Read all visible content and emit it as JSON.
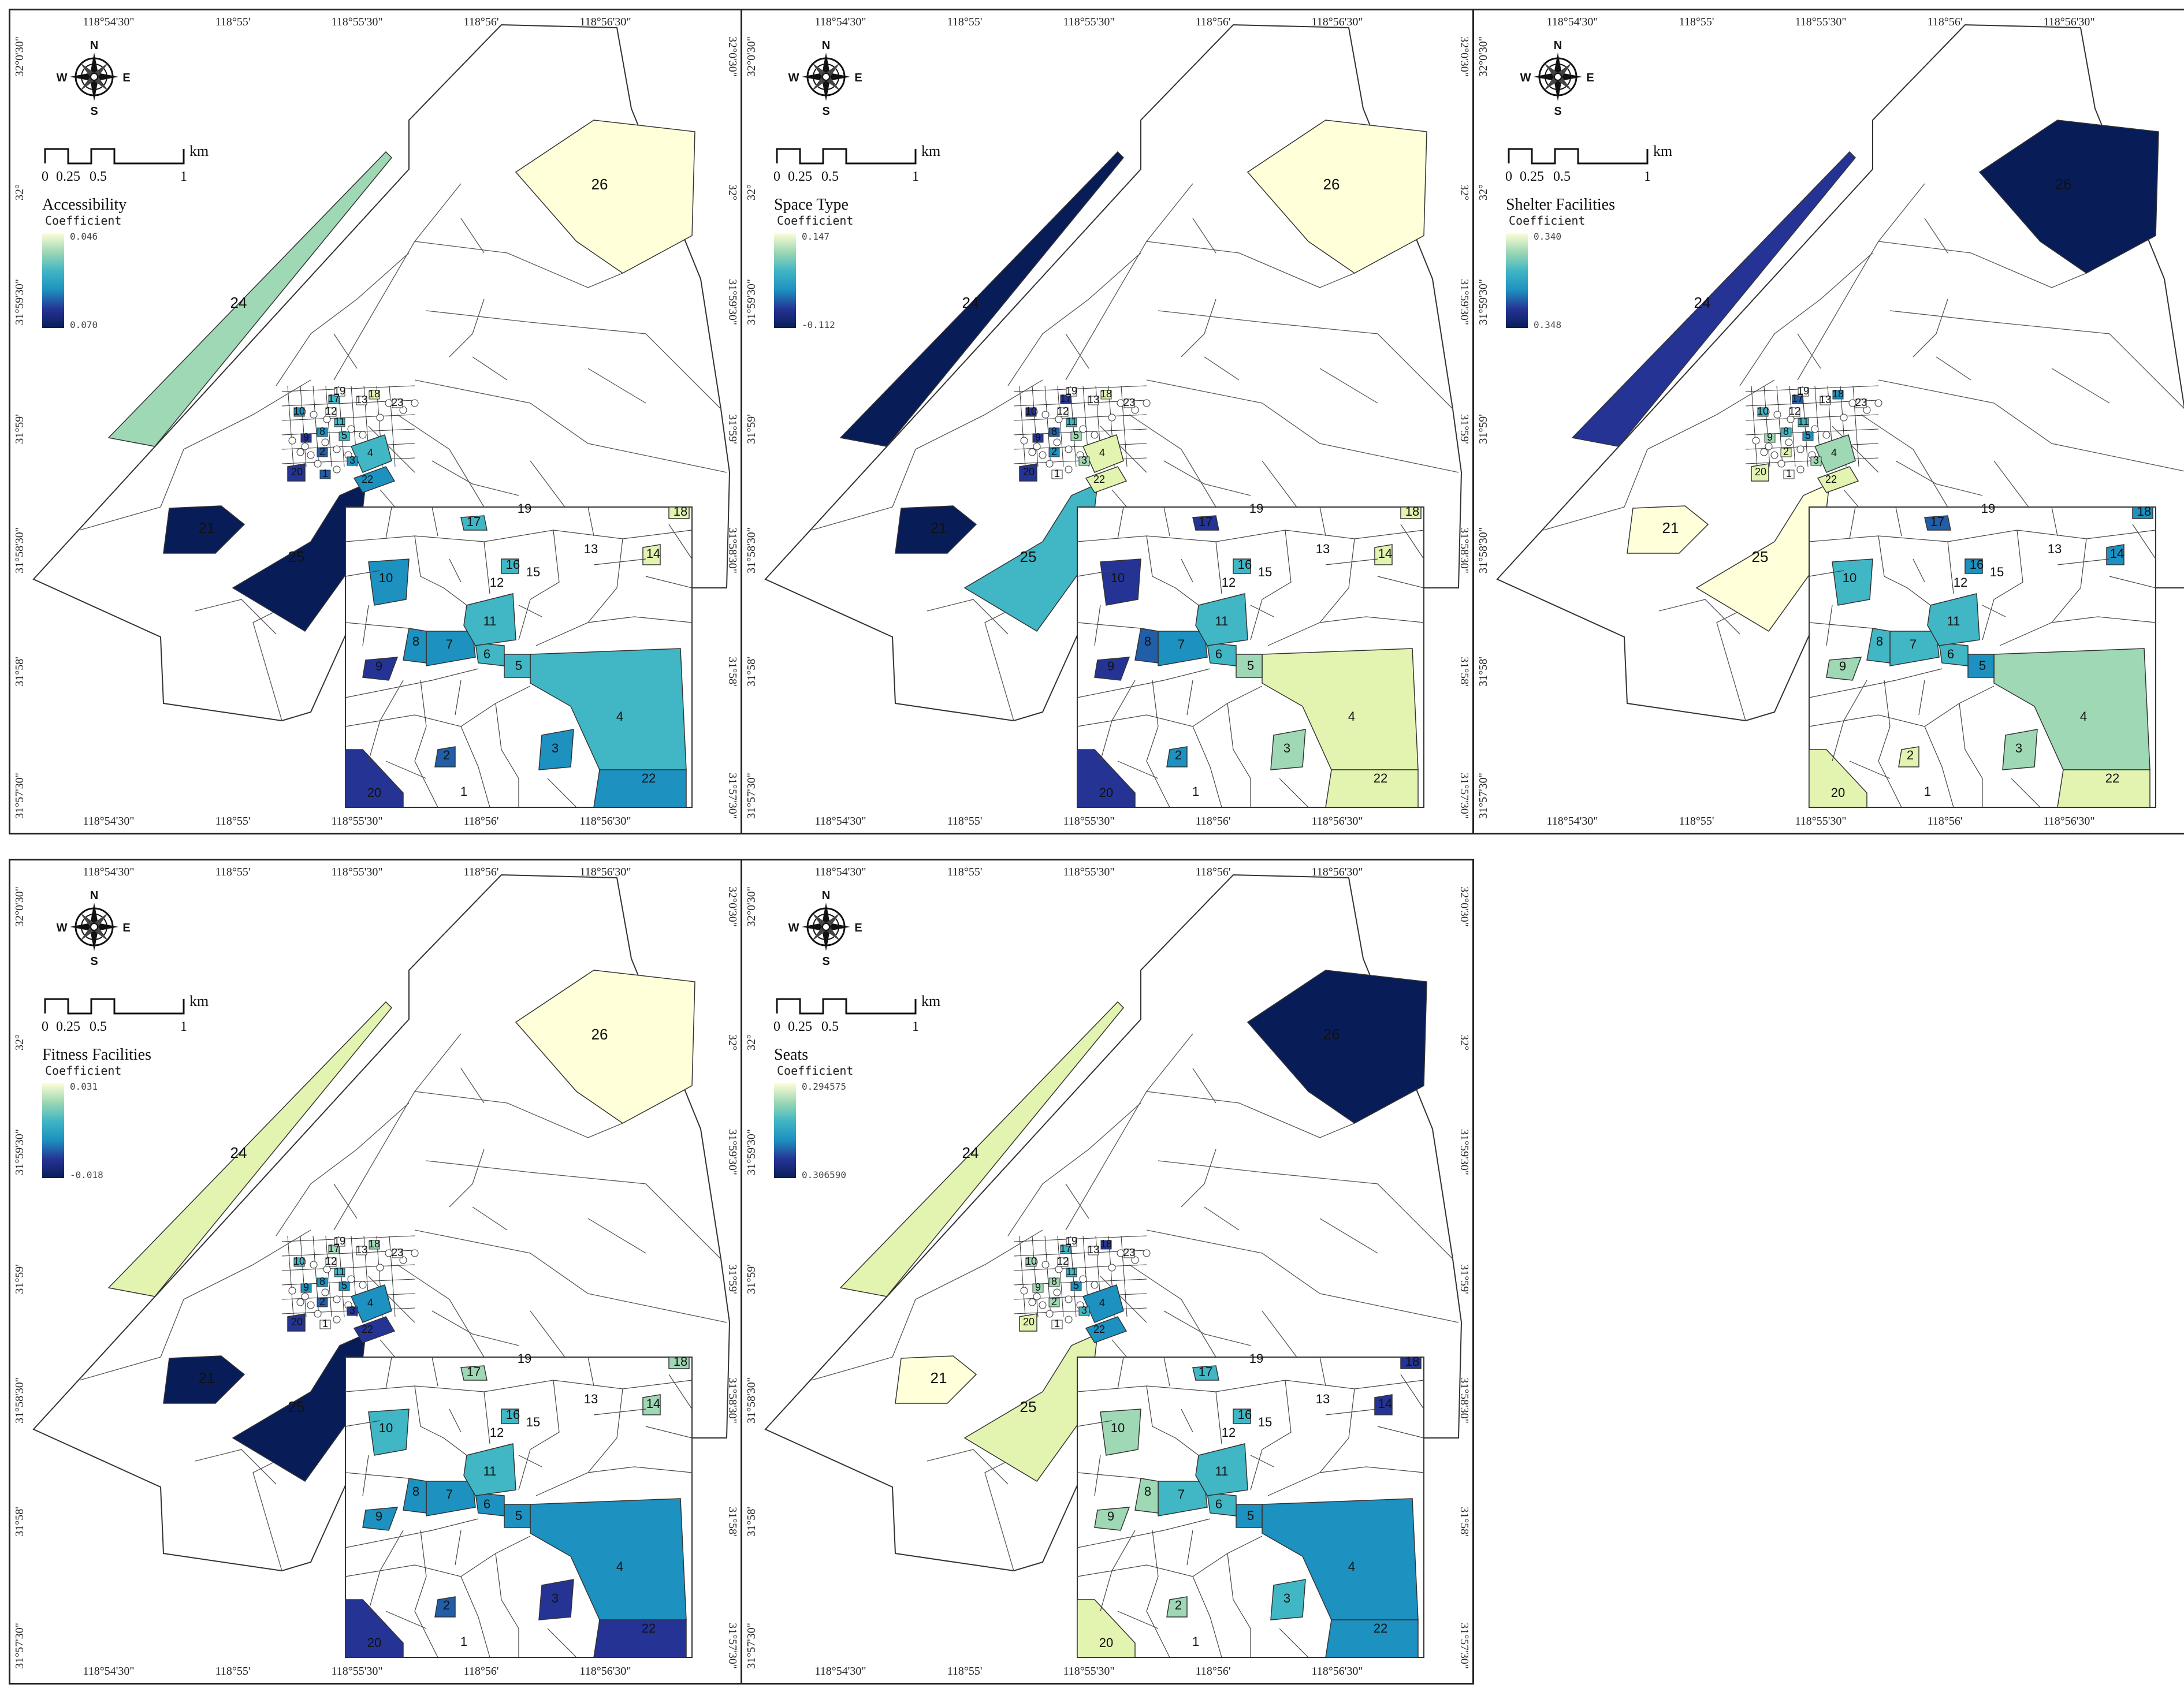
{
  "figure": {
    "longitude_labels": [
      "118°54'30\"",
      "118°55'",
      "118°55'30\"",
      "118°56'",
      "118°56'30\""
    ],
    "latitude_labels": [
      "32°0'30\"",
      "32°",
      "31°59'30\"",
      "31°59'",
      "31°58'30\"",
      "31°58'",
      "31°57'30\""
    ],
    "north_arrow": {
      "n": "N",
      "s": "S",
      "e": "E",
      "w": "W"
    },
    "scale_bar": {
      "ticks": [
        "0",
        "0.25",
        "0.5",
        "1"
      ],
      "unit": "km"
    },
    "legend_subtitle": "Coefficient",
    "colors": {
      "c1": "#ffffd9",
      "c2": "#e3f4b1",
      "c3": "#9fd8b4",
      "c4": "#41b6c4",
      "c5": "#1d91c0",
      "c6": "#225ea8",
      "c7": "#253494",
      "c8": "#081d58"
    }
  },
  "panels": [
    {
      "id": "accessibility",
      "legend_title": "Accessibility",
      "legend_max": "0.046",
      "legend_min": "0.070",
      "regions": {
        "1": "c6",
        "2": "c6",
        "3": "c5",
        "4": "c4",
        "5": "c4",
        "6": "c4",
        "7": "c5",
        "8": "c5",
        "9": "c7",
        "10": "c5",
        "11": "c4",
        "12": "none",
        "14": "c2",
        "16": "c4",
        "17": "c4",
        "18": "c2",
        "20": "c7",
        "21": "c8",
        "22": "c5",
        "24": "c3",
        "25": "c8",
        "26": "c1"
      }
    },
    {
      "id": "space-type",
      "legend_title": "Space Type",
      "legend_max": "0.147",
      "legend_min": "-0.112",
      "regions": {
        "1": "none",
        "2": "c5",
        "3": "c3",
        "4": "c2",
        "5": "c3",
        "6": "c4",
        "7": "c5",
        "8": "c6",
        "9": "c7",
        "10": "c7",
        "11": "c4",
        "12": "none",
        "14": "c2",
        "16": "c4",
        "17": "c7",
        "18": "c2",
        "20": "c7",
        "21": "c8",
        "22": "c2",
        "24": "c8",
        "25": "c4",
        "26": "c1"
      }
    },
    {
      "id": "shelter-facilities",
      "legend_title": "Shelter Facilities",
      "legend_max": "0.340",
      "legend_min": "0.348",
      "regions": {
        "1": "none",
        "2": "c2",
        "3": "c3",
        "4": "c3",
        "5": "c5",
        "6": "c4",
        "7": "c4",
        "8": "c4",
        "9": "c3",
        "10": "c4",
        "11": "c4",
        "12": "none",
        "14": "c5",
        "16": "c5",
        "17": "c6",
        "18": "c5",
        "20": "c2",
        "21": "c1",
        "22": "c2",
        "24": "c7",
        "25": "c1",
        "26": "c8"
      }
    },
    {
      "id": "fitness-facilities",
      "legend_title": "Fitness Facilities",
      "legend_max": "0.031",
      "legend_min": "-0.018",
      "regions": {
        "1": "none",
        "2": "c6",
        "3": "c7",
        "4": "c5",
        "5": "c5",
        "6": "c5",
        "7": "c5",
        "8": "c5",
        "9": "c5",
        "10": "c4",
        "11": "c4",
        "12": "none",
        "14": "c3",
        "16": "c4",
        "17": "c3",
        "18": "c3",
        "20": "c7",
        "21": "c8",
        "22": "c7",
        "24": "c2",
        "25": "c8",
        "26": "c1"
      }
    },
    {
      "id": "seats",
      "legend_title": "Seats",
      "legend_max": "0.294575",
      "legend_min": "0.306590",
      "regions": {
        "1": "none",
        "2": "c3",
        "3": "c4",
        "4": "c5",
        "5": "c5",
        "6": "c4",
        "7": "c4",
        "8": "c3",
        "9": "c3",
        "10": "c3",
        "11": "c4",
        "12": "none",
        "14": "c7",
        "16": "c4",
        "17": "c4",
        "18": "c7",
        "20": "c2",
        "21": "c1",
        "22": "c5",
        "24": "c2",
        "25": "c2",
        "26": "c8"
      }
    }
  ]
}
